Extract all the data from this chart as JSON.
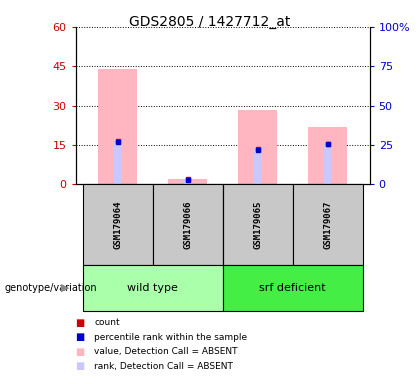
{
  "title": "GDS2805 / 1427712_at",
  "samples": [
    "GSM179064",
    "GSM179066",
    "GSM179065",
    "GSM179067"
  ],
  "ylim_left": [
    0,
    60
  ],
  "ylim_right": [
    0,
    100
  ],
  "yticks_left": [
    0,
    15,
    30,
    45,
    60
  ],
  "yticks_right": [
    0,
    25,
    50,
    75,
    100
  ],
  "ylabel_left_color": "#CC0000",
  "ylabel_right_color": "#0000CC",
  "pink_bars": [
    44.0,
    2.0,
    28.5,
    22.0
  ],
  "blue_bars_pct": [
    27.0,
    3.3,
    22.5,
    26.0
  ],
  "count_vals": [
    16.5,
    2.0,
    13.5,
    15.5
  ],
  "percentile_vals": [
    16.0,
    1.8,
    13.0,
    15.2
  ],
  "bar_width": 0.55,
  "blue_bar_width": 0.1,
  "legend_items": [
    {
      "color": "#CC0000",
      "label": "count"
    },
    {
      "color": "#0000CC",
      "label": "percentile rank within the sample"
    },
    {
      "color": "#FFB6C1",
      "label": "value, Detection Call = ABSENT"
    },
    {
      "color": "#C8C8FF",
      "label": "rank, Detection Call = ABSENT"
    }
  ],
  "genotype_label": "genotype/variation",
  "bg_color": "#C8C8C8",
  "wt_color": "#AAFFAA",
  "srf_color": "#44EE44",
  "plot_bg": "#FFFFFF",
  "group_border_color": "#000000"
}
